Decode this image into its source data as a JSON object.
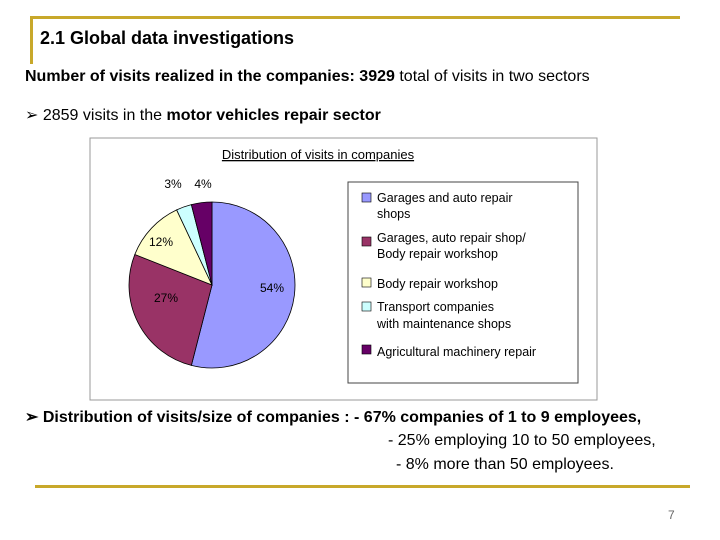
{
  "slide": {
    "title": "2.1 Global data investigations",
    "summary": {
      "bold": "Number of visits realized in the companies:  3929",
      "normal": "total of visits in two sectors"
    },
    "bullet_1": {
      "normal": "2859 visits in the",
      "bold": "motor vehicles repair sector"
    },
    "bullet_2": {
      "lines": [
        "Distribution of visits/size of companies : - 67% companies of 1 to 9 employees,",
        "- 25% employing 10 to 50 employees,",
        "- 8% more than 50 employees."
      ]
    },
    "page_number": "7"
  },
  "chart_data": {
    "type": "pie",
    "title": "Distribution of visits in companies",
    "categories": [
      "Garages and auto repair shops",
      "Garages, auto repair shop/ Body repair workshop",
      "Body repair workshop",
      "Transport companies with maintenance shops",
      "Agricultural machinery repair"
    ],
    "values": [
      54,
      27,
      12,
      3,
      4
    ],
    "value_labels": [
      "54%",
      "27%",
      "12%",
      "3%",
      "4%"
    ],
    "colors": [
      "#9999ff",
      "#993366",
      "#ffffcc",
      "#ccffff",
      "#660066"
    ]
  }
}
